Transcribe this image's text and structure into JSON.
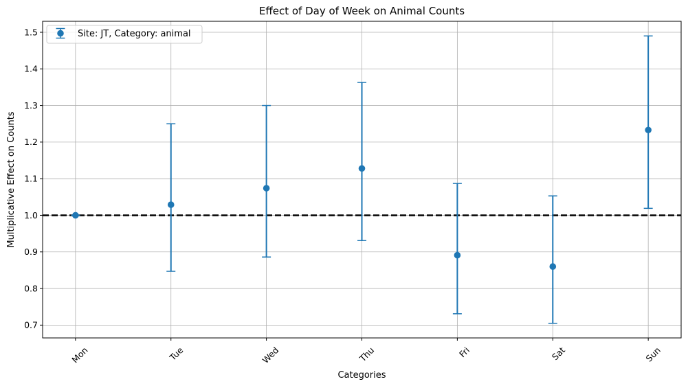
{
  "chart_data": {
    "type": "scatter",
    "title": "Effect of Day of Week on Animal Counts",
    "xlabel": "Categories",
    "ylabel": "Multiplicative Effect on Counts",
    "categories": [
      "Mon",
      "Tue",
      "Wed",
      "Thu",
      "Fri",
      "Sat",
      "Sun"
    ],
    "series": [
      {
        "name": "Site: JT, Category: animal",
        "color": "#1f77b4",
        "values": [
          1.0,
          1.029,
          1.074,
          1.128,
          0.891,
          0.86,
          1.233
        ],
        "lower": [
          1.0,
          0.847,
          0.886,
          0.931,
          0.731,
          0.705,
          1.019
        ],
        "upper": [
          1.0,
          1.25,
          1.3,
          1.363,
          1.087,
          1.053,
          1.49
        ]
      }
    ],
    "reference_line": {
      "y": 1.0,
      "style": "dashed",
      "color": "#000000"
    },
    "ylim": [
      0.665,
      1.53
    ],
    "yticks": [
      0.7,
      0.8,
      0.9,
      1.0,
      1.1,
      1.2,
      1.3,
      1.4,
      1.5
    ],
    "xtick_rotation": 45,
    "grid": true,
    "legend_position": "upper left"
  }
}
